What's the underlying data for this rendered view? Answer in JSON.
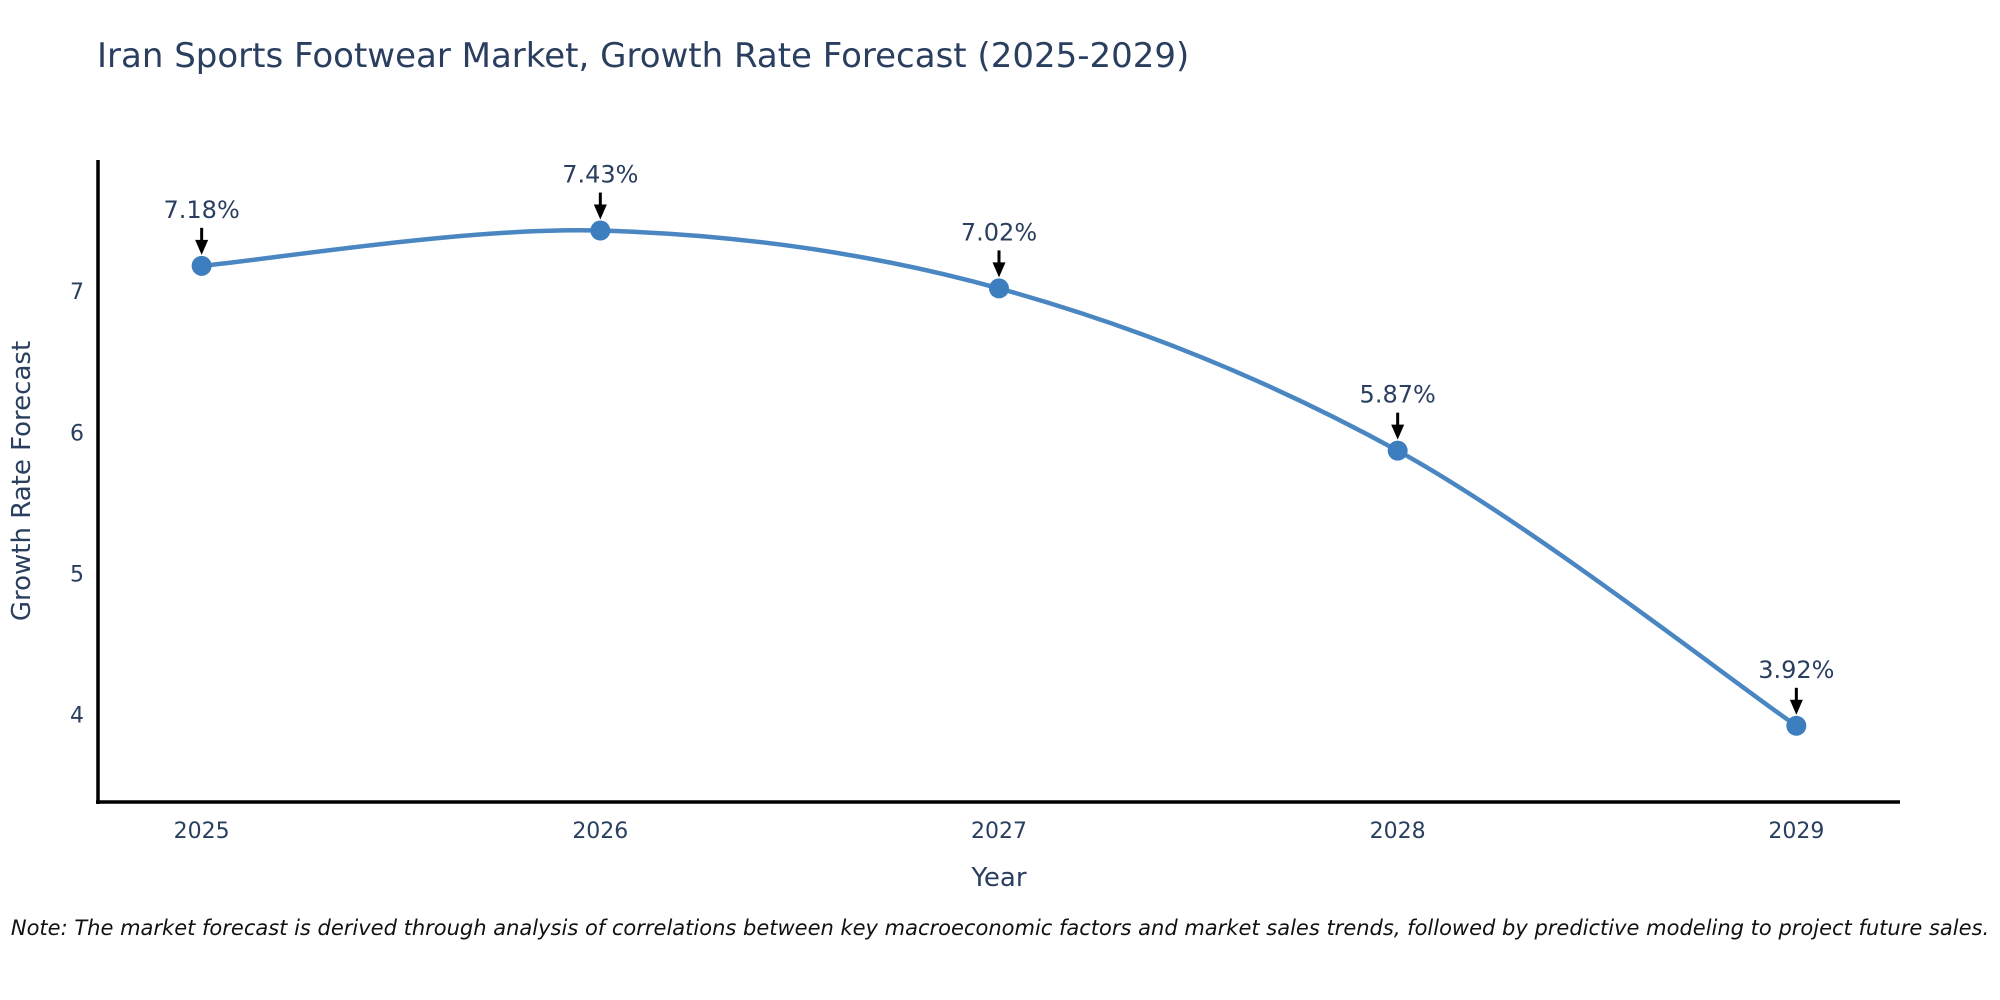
{
  "title": "Iran Sports Footwear Market, Growth Rate Forecast (2025-2029)",
  "note": "Note: The market forecast is derived through analysis of correlations between key macroeconomic factors and market sales trends, followed by predictive modeling to project future sales.",
  "chart_data": {
    "type": "line",
    "title": "Iran Sports Footwear Market, Growth Rate Forecast (2025-2029)",
    "x": [
      2025,
      2026,
      2027,
      2028,
      2029
    ],
    "series": [
      {
        "name": "Growth Rate Forecast",
        "values": [
          7.18,
          7.43,
          7.02,
          5.87,
          3.92
        ]
      }
    ],
    "point_labels": [
      "7.18%",
      "7.43%",
      "7.02%",
      "5.87%",
      "3.92%"
    ],
    "xlabel": "Year",
    "ylabel": "Growth Rate Forecast",
    "xticks": [
      "2025",
      "2026",
      "2027",
      "2028",
      "2029"
    ],
    "yticks": [
      4,
      5,
      6,
      7
    ],
    "xlim": [
      2024.74,
      2029.26
    ],
    "ylim": [
      3.38,
      7.93
    ],
    "grid": false,
    "legend": "none",
    "line_shape": "spline",
    "colors": {
      "line": "#4a87c2",
      "marker": "#3d7ebe",
      "axis_line": "#000000",
      "tick_text": "#2a3f5f",
      "axis_title_text": "#2a3f5f",
      "title_text": "#2a3f5f",
      "annotation_text": "#2a3f5f",
      "annotation_arrow": "#000000",
      "background": "#ffffff"
    }
  }
}
